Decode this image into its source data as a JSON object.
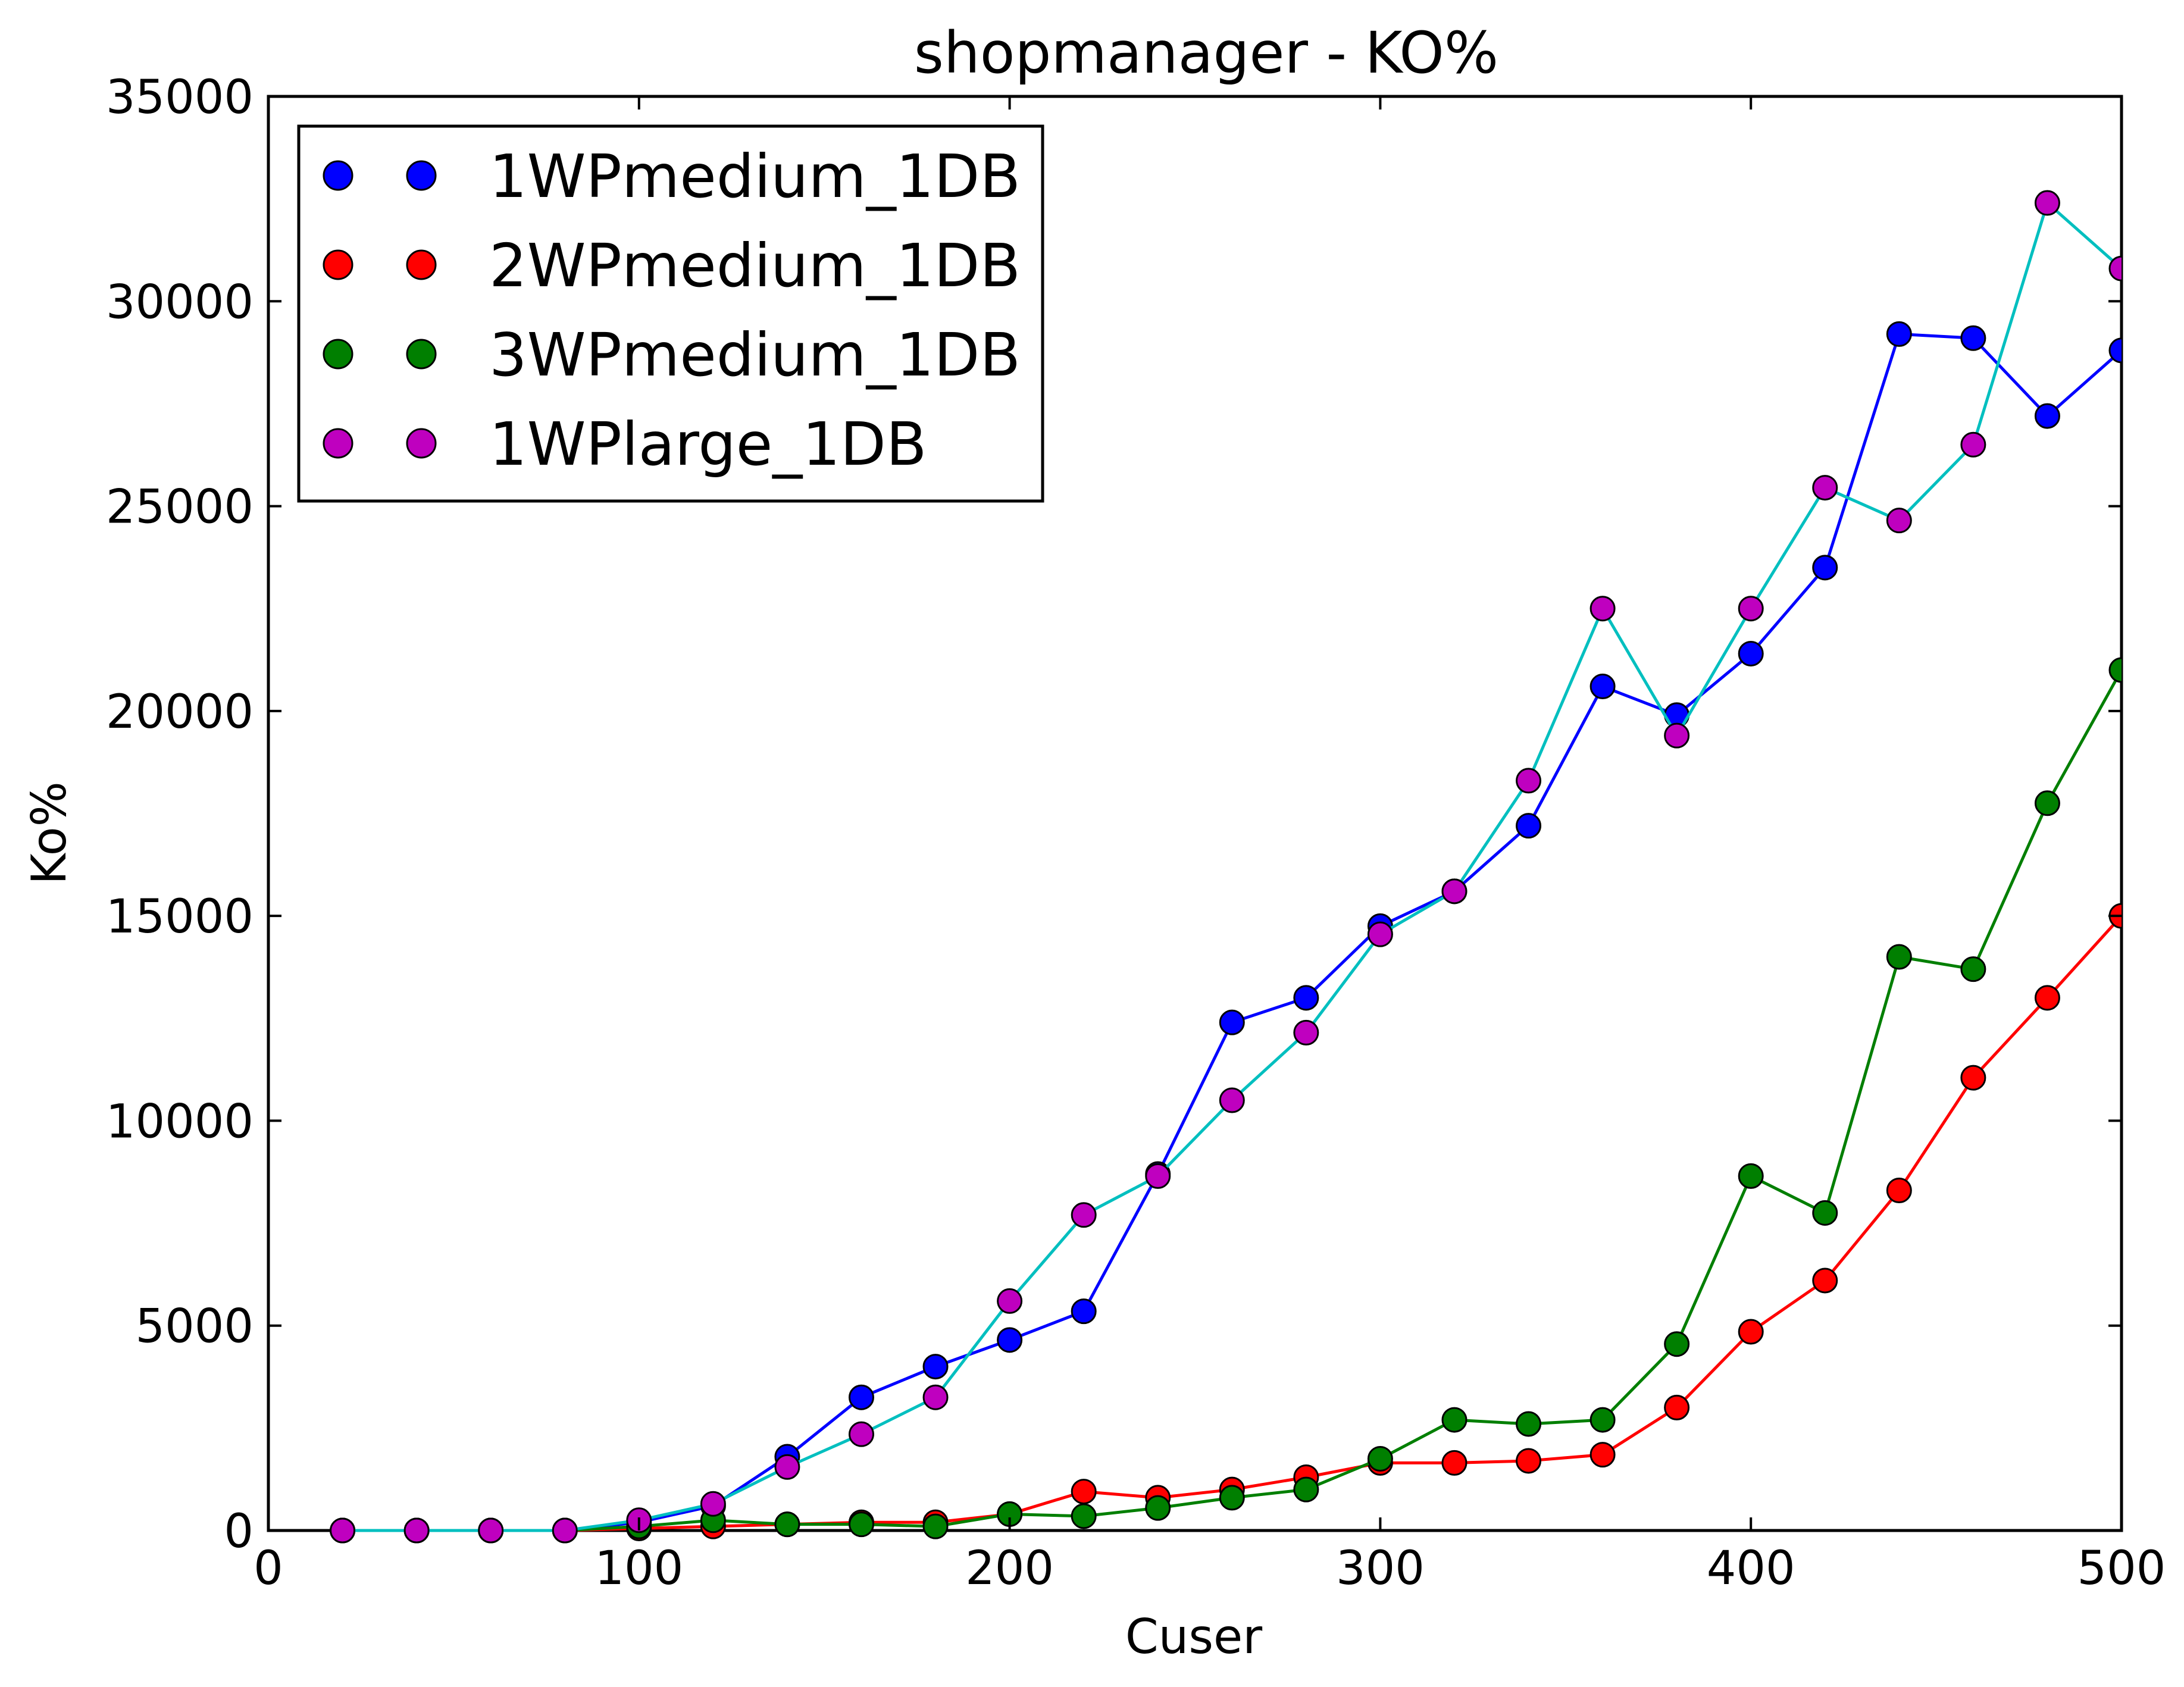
{
  "chart_data": {
    "type": "line",
    "title": "shopmanager  - KO%",
    "xlabel": "Cuser",
    "ylabel": "Ko%",
    "xlim": [
      0,
      500
    ],
    "ylim": [
      0,
      35000
    ],
    "xticks": [
      0,
      100,
      200,
      300,
      400,
      500
    ],
    "yticks": [
      0,
      5000,
      10000,
      15000,
      20000,
      25000,
      30000,
      35000
    ],
    "xtick_labels": [
      "0",
      "100",
      "200",
      "300",
      "400",
      "500"
    ],
    "ytick_labels": [
      "0",
      "5000",
      "10000",
      "15000",
      "20000",
      "25000",
      "30000",
      "35000"
    ],
    "legend_position": "top-left",
    "x": [
      20,
      40,
      60,
      80,
      100,
      120,
      140,
      160,
      180,
      200,
      220,
      240,
      260,
      280,
      300,
      320,
      340,
      360,
      380,
      400,
      420,
      440,
      460,
      480,
      500
    ],
    "series": [
      {
        "name": "1WPmedium_1DB",
        "marker_color": "#0000ff",
        "line_color": "#0000ff",
        "values": [
          0,
          0,
          0,
          0,
          200,
          600,
          1800,
          3250,
          4000,
          4650,
          5350,
          8700,
          12400,
          13000,
          14750,
          15600,
          17200,
          20600,
          19900,
          21400,
          23500,
          29200,
          29100,
          27200,
          28800
        ]
      },
      {
        "name": "2WPmedium_1DB",
        "marker_color": "#ff0000",
        "line_color": "#ff0000",
        "values": [
          0,
          0,
          0,
          0,
          50,
          100,
          150,
          200,
          200,
          400,
          950,
          800,
          1000,
          1300,
          1650,
          1650,
          1700,
          1850,
          3000,
          4850,
          6100,
          8300,
          11050,
          13000,
          15000
        ]
      },
      {
        "name": "3WPmedium_1DB",
        "marker_color": "#007f00",
        "line_color": "#007f00",
        "values": [
          0,
          0,
          0,
          0,
          100,
          250,
          150,
          150,
          100,
          400,
          350,
          550,
          800,
          1000,
          1750,
          2700,
          2600,
          2700,
          4550,
          8650,
          7750,
          14000,
          13700,
          17750,
          21000
        ]
      },
      {
        "name": "1WPlarge_1DB",
        "marker_color": "#bf00bf",
        "line_color": "#00bfbf",
        "values": [
          0,
          0,
          0,
          0,
          250,
          650,
          1550,
          2350,
          3250,
          5600,
          7700,
          8650,
          10500,
          12150,
          14550,
          15600,
          18300,
          22500,
          19400,
          22500,
          25450,
          24650,
          26500,
          32400,
          30800
        ]
      }
    ],
    "draw_order": [
      "1WPmedium_1DB",
      "2WPmedium_1DB",
      "3WPmedium_1DB",
      "1WPlarge_1DB"
    ]
  }
}
